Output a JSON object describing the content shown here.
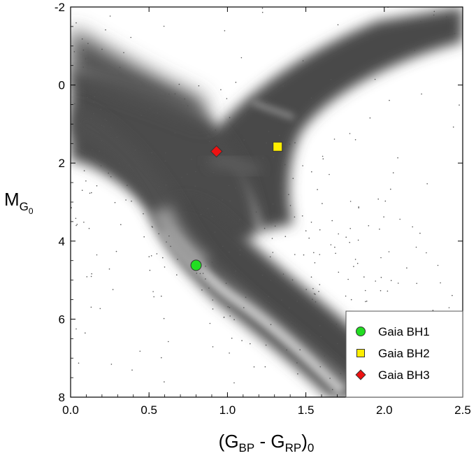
{
  "chart_data": {
    "type": "scatter",
    "title": "",
    "xlabel": {
      "main": "(G",
      "sub1": "BP",
      "mid": " - G",
      "sub2": "RP",
      "close": ")",
      "sub3": "0"
    },
    "ylabel": {
      "main": "M",
      "sub": "G",
      "subsub": "0"
    },
    "xlim": [
      0.0,
      2.5
    ],
    "ylim": [
      8,
      -2
    ],
    "y_inverted": true,
    "x_ticks": [
      "0.0",
      "0.5",
      "1.0",
      "1.5",
      "2.0",
      "2.5"
    ],
    "y_ticks": [
      "-2",
      "0",
      "2",
      "4",
      "6",
      "8"
    ],
    "background": "grey density of field stars (main sequence, subgiant and red giant branches)",
    "series": [
      {
        "name": "Gaia BH1",
        "marker": "circle",
        "color": "#22dd22",
        "points": [
          {
            "x": 0.8,
            "y": 4.62
          }
        ]
      },
      {
        "name": "Gaia BH2",
        "marker": "square",
        "color": "#ffee00",
        "points": [
          {
            "x": 1.32,
            "y": 1.58
          }
        ]
      },
      {
        "name": "Gaia BH3",
        "marker": "diamond",
        "color": "#ee1111",
        "points": [
          {
            "x": 0.93,
            "y": 1.7
          }
        ]
      }
    ],
    "legend": {
      "position": "bottom-right",
      "entries": [
        "Gaia BH1",
        "Gaia BH2",
        "Gaia BH3"
      ]
    },
    "grid": false
  }
}
